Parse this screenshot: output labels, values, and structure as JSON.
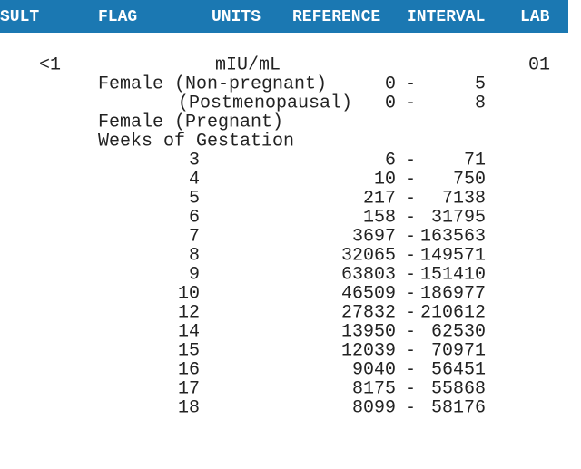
{
  "header": {
    "columns": [
      "SULT",
      "FLAG",
      "UNITS",
      "REFERENCE",
      "INTERVAL",
      "LAB"
    ]
  },
  "result_row": {
    "result": "<1",
    "units": "mIU/mL",
    "lab": "01"
  },
  "separator": "-",
  "ranges": [
    {
      "label": "Female (Non-pregnant)",
      "low": 0,
      "high": 5
    },
    {
      "label": "(Postmenopausal)",
      "low": 0,
      "high": 8
    }
  ],
  "notes": [
    "Female (Pregnant)",
    "Weeks of Gestation"
  ],
  "gestation": [
    {
      "week": 3,
      "low": 6,
      "high": 71
    },
    {
      "week": 4,
      "low": 10,
      "high": 750
    },
    {
      "week": 5,
      "low": 217,
      "high": 7138
    },
    {
      "week": 6,
      "low": 158,
      "high": 31795
    },
    {
      "week": 7,
      "low": 3697,
      "high": 163563
    },
    {
      "week": 8,
      "low": 32065,
      "high": 149571
    },
    {
      "week": 9,
      "low": 63803,
      "high": 151410
    },
    {
      "week": 10,
      "low": 46509,
      "high": 186977
    },
    {
      "week": 12,
      "low": 27832,
      "high": 210612
    },
    {
      "week": 14,
      "low": 13950,
      "high": 62530
    },
    {
      "week": 15,
      "low": 12039,
      "high": 70971
    },
    {
      "week": 16,
      "low": 9040,
      "high": 56451
    },
    {
      "week": 17,
      "low": 8175,
      "high": 55868
    },
    {
      "week": 18,
      "low": 8099,
      "high": 58176
    }
  ]
}
